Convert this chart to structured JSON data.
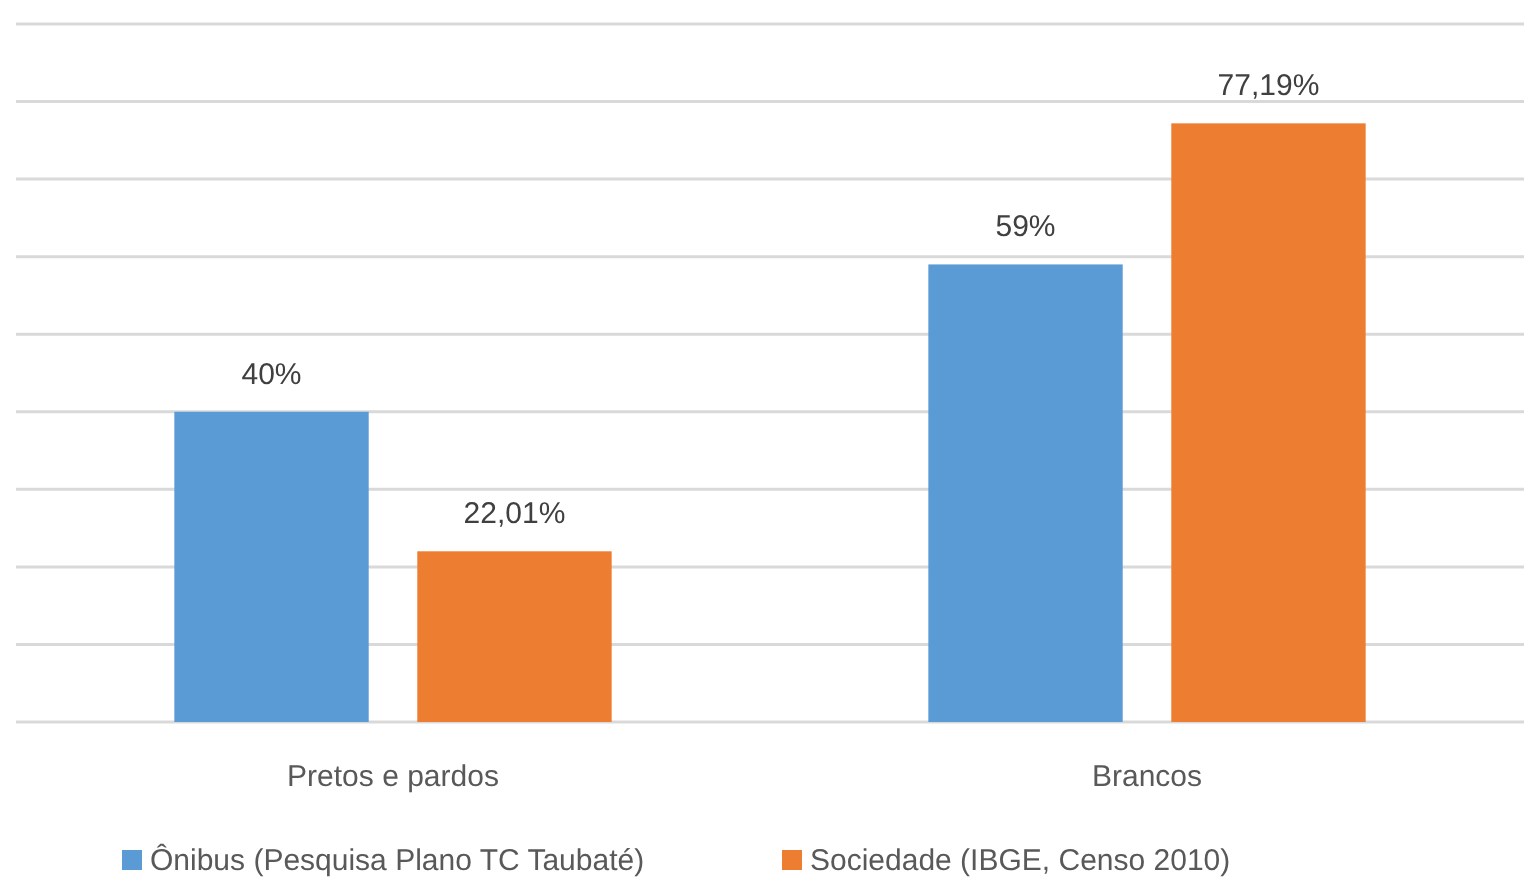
{
  "chart_data": {
    "type": "bar",
    "categories": [
      "Pretos e pardos",
      "Brancos"
    ],
    "series": [
      {
        "name": "Ônibus (Pesquisa Plano TC Taubaté)",
        "color": "#5b9bd5",
        "values": [
          40,
          59
        ],
        "value_labels": [
          "40%",
          "59%"
        ]
      },
      {
        "name": "Sociedade (IBGE, Censo 2010)",
        "color": "#ed7d31",
        "values": [
          22.01,
          77.19
        ],
        "value_labels": [
          "22,01%",
          "77,19%"
        ]
      }
    ],
    "ylim": [
      0,
      90
    ],
    "yticks": [
      {
        "value": 0,
        "label": null
      },
      {
        "value": 10,
        "label": null
      },
      {
        "value": 20,
        "label": null
      },
      {
        "value": 30,
        "label": null
      },
      {
        "value": 40,
        "label": null
      },
      {
        "value": 50,
        "label": null
      },
      {
        "value": 60,
        "label": null
      },
      {
        "value": 70,
        "label": null
      },
      {
        "value": 80,
        "label": null
      },
      {
        "value": 90,
        "label": null
      }
    ],
    "tick_labels": "x",
    "grid": "y",
    "legend": "bottom"
  }
}
